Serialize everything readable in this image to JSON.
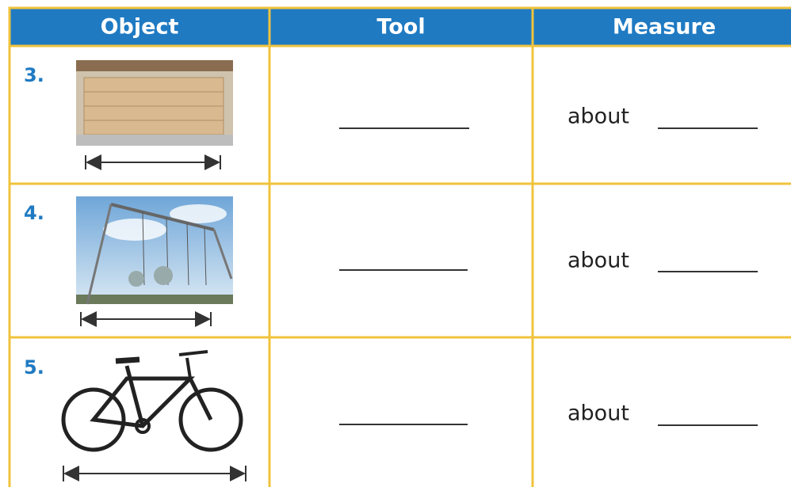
{
  "table": {
    "headers": [
      "Object",
      "Tool",
      "Measure"
    ],
    "rows": [
      {
        "number": "3.",
        "measure": "about"
      },
      {
        "number": "4.",
        "measure": "about"
      },
      {
        "number": "5.",
        "measure": "about"
      }
    ]
  }
}
